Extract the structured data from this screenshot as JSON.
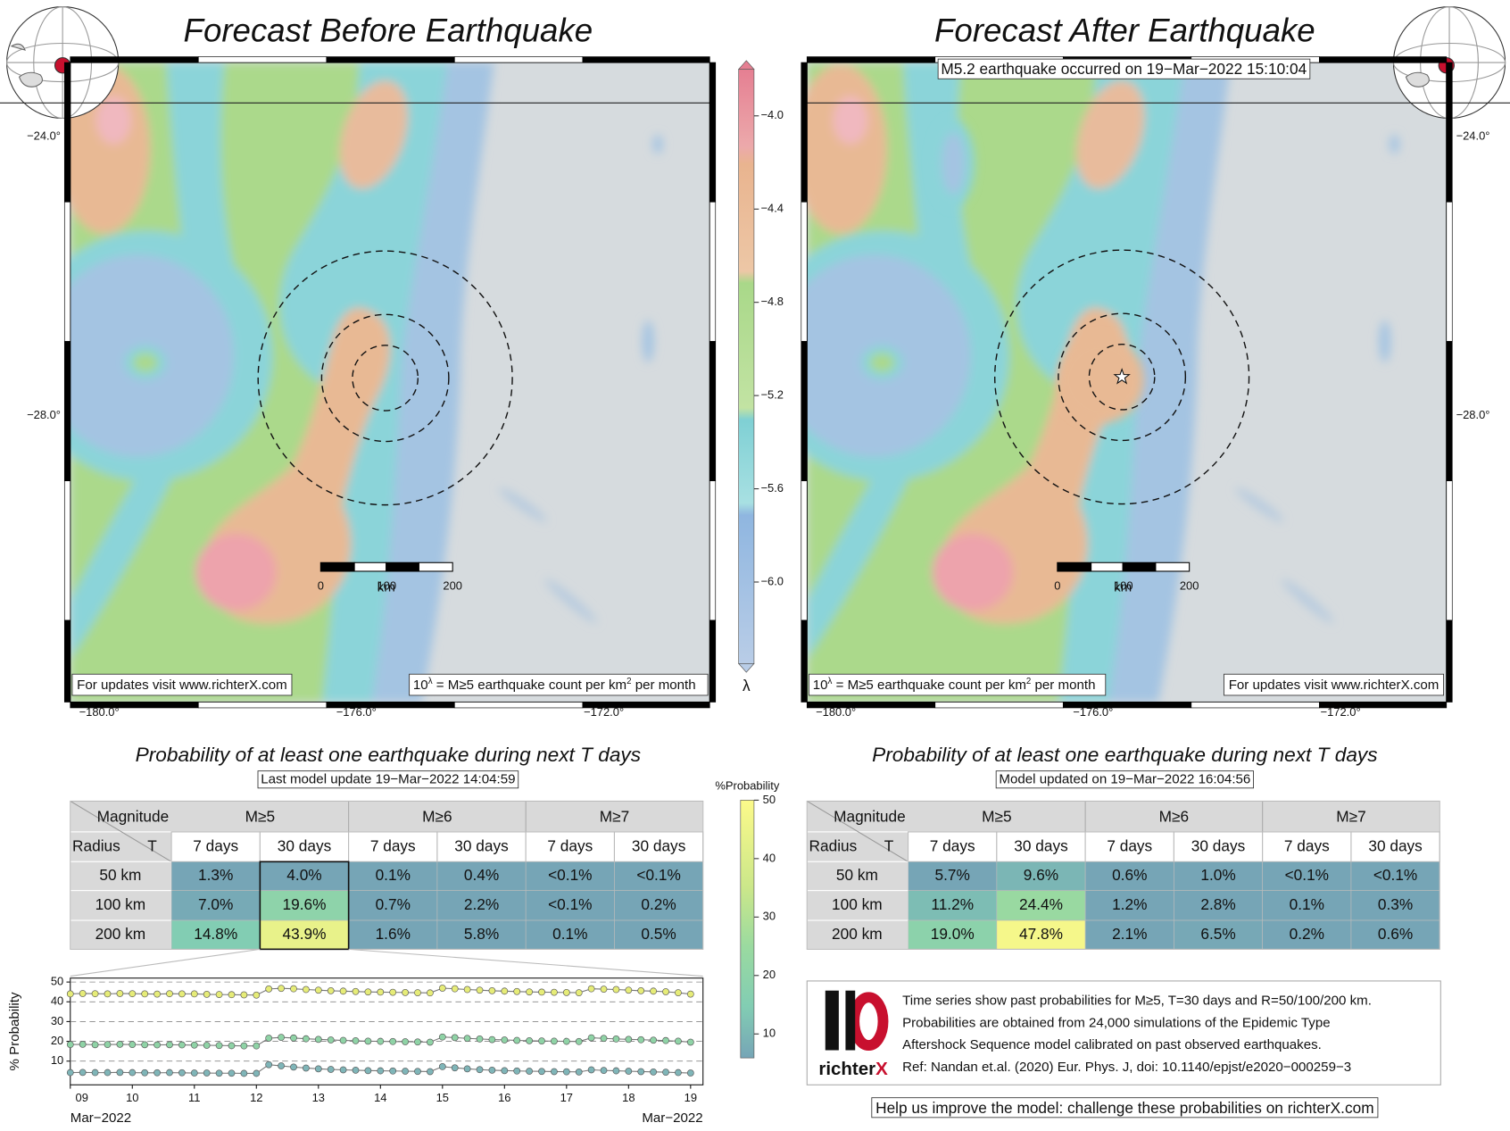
{
  "left_map": {
    "title": "Forecast Before Earthquake",
    "lat_labels": [
      "−24.0°",
      "−28.0°"
    ],
    "lon_labels": [
      "−180.0°",
      "−176.0°",
      "−172.0°"
    ],
    "scale_unit": "km",
    "scale_labels": [
      "0",
      "100",
      "200"
    ],
    "credit": "For updates visit www.richterX.com",
    "legend": [
      "10",
      "λ",
      " = M≥5 earthquake count per km",
      "2",
      " per month"
    ]
  },
  "right_map": {
    "title": "Forecast After Earthquake",
    "annotation": "M5.2 earthquake occurred on 19−Mar−2022 15:10:04",
    "lat_labels": [
      "−24.0°",
      "−28.0°"
    ],
    "lon_labels": [
      "−180.0°",
      "−176.0°",
      "−172.0°"
    ],
    "scale_unit": "km",
    "scale_labels": [
      "0",
      "100",
      "200"
    ],
    "credit": "For updates visit www.richterX.com",
    "legend": [
      "10",
      "λ",
      " = M≥5 earthquake count per km",
      "2",
      " per month"
    ]
  },
  "lambda_colorbar": {
    "label": "λ",
    "lim": [
      -6.35,
      -3.8
    ],
    "ticks": [
      {
        "value": -4.0,
        "label": "−4.0"
      },
      {
        "value": -4.4,
        "label": "−4.4"
      },
      {
        "value": -4.8,
        "label": "−4.8"
      },
      {
        "value": -5.2,
        "label": "−5.2"
      },
      {
        "value": -5.6,
        "label": "−5.6"
      },
      {
        "value": -6.0,
        "label": "−6.0"
      }
    ]
  },
  "left_table": {
    "title": "Probability of at least one earthquake during next T days",
    "subtitle": "Last model update 19−Mar−2022 14:04:59",
    "corner": [
      "Magnitude",
      "Radius",
      "T"
    ],
    "magnitudes": [
      "M≥5",
      "M≥6",
      "M≥7"
    ],
    "durations": [
      "7 days",
      "30 days",
      "7 days",
      "30 days",
      "7 days",
      "30 days"
    ],
    "rows": [
      {
        "radius": "50 km",
        "cells": [
          "1.3%",
          "4.0%",
          "0.1%",
          "0.4%",
          "<0.1%",
          "<0.1%"
        ]
      },
      {
        "radius": "100 km",
        "cells": [
          "7.0%",
          "19.6%",
          "0.7%",
          "2.2%",
          "<0.1%",
          "0.2%"
        ]
      },
      {
        "radius": "200 km",
        "cells": [
          "14.8%",
          "43.9%",
          "1.6%",
          "5.8%",
          "0.1%",
          "0.5%"
        ]
      }
    ]
  },
  "right_table": {
    "title": "Probability of at least one earthquake during next T days",
    "subtitle": "Model updated on 19−Mar−2022 16:04:56",
    "corner": [
      "Magnitude",
      "Radius",
      "T"
    ],
    "magnitudes": [
      "M≥5",
      "M≥6",
      "M≥7"
    ],
    "durations": [
      "7 days",
      "30 days",
      "7 days",
      "30 days",
      "7 days",
      "30 days"
    ],
    "rows": [
      {
        "radius": "50 km",
        "cells": [
          "5.7%",
          "9.6%",
          "0.6%",
          "1.0%",
          "<0.1%",
          "<0.1%"
        ]
      },
      {
        "radius": "100 km",
        "cells": [
          "11.2%",
          "24.4%",
          "1.2%",
          "2.8%",
          "0.1%",
          "0.3%"
        ]
      },
      {
        "radius": "200 km",
        "cells": [
          "19.0%",
          "47.8%",
          "2.1%",
          "6.5%",
          "0.2%",
          "0.6%"
        ]
      }
    ]
  },
  "probability_colorbar": {
    "label": "%Probability",
    "lim": [
      5.9,
      50
    ],
    "ticks": [
      10,
      20,
      30,
      40,
      50
    ]
  },
  "chart_data": {
    "type": "line",
    "y_label": "% Probability",
    "x_edge_labels": [
      "Mar−2022",
      "Mar−2022"
    ],
    "xlim": [
      9.0,
      19.2
    ],
    "ylim": [
      -2,
      52
    ],
    "xticks": [
      {
        "value": 9,
        "label": "09"
      },
      10,
      11,
      12,
      13,
      14,
      15,
      16,
      17,
      18,
      19
    ],
    "yticks": [
      10,
      20,
      30,
      40,
      50
    ],
    "grid": true,
    "x": [
      9.0,
      9.2,
      9.4,
      9.6,
      9.8,
      10.0,
      10.2,
      10.4,
      10.6,
      10.8,
      11.0,
      11.2,
      11.4,
      11.6,
      11.8,
      12.0,
      12.2,
      12.4,
      12.6,
      12.8,
      13.0,
      13.2,
      13.4,
      13.6,
      13.8,
      14.0,
      14.2,
      14.4,
      14.6,
      14.8,
      15.0,
      15.2,
      15.4,
      15.6,
      15.8,
      16.0,
      16.2,
      16.4,
      16.6,
      16.8,
      17.0,
      17.2,
      17.4,
      17.6,
      17.8,
      18.0,
      18.2,
      18.4,
      18.6,
      18.8,
      19.0
    ],
    "series": [
      {
        "color": "#e6ec78",
        "values": [
          44,
          44.2,
          44.1,
          44,
          44.2,
          44.1,
          44,
          43.9,
          44.1,
          44,
          44,
          43.8,
          43.7,
          43.6,
          43.5,
          43.4,
          46.5,
          46.8,
          46.6,
          46.2,
          45.9,
          45.6,
          45.4,
          45.2,
          45,
          44.9,
          44.8,
          44.7,
          44.6,
          44.5,
          46.9,
          46.6,
          46.2,
          45.9,
          45.6,
          45.4,
          45.2,
          45,
          44.9,
          44.8,
          44.7,
          44.6,
          46.6,
          46.4,
          46.2,
          45.9,
          45.6,
          45.4,
          45.1,
          44.6,
          43.9
        ]
      },
      {
        "color": "#8fd3a6",
        "values": [
          18.4,
          18.5,
          18.3,
          18.4,
          18.5,
          18.4,
          18.3,
          18.2,
          18.3,
          18.2,
          18.1,
          18,
          17.9,
          17.8,
          17.7,
          17.7,
          21.6,
          22,
          21.7,
          21.3,
          21,
          20.7,
          20.5,
          20.3,
          20.1,
          20,
          19.9,
          19.8,
          19.7,
          19.6,
          22.2,
          21.9,
          21.5,
          21.2,
          20.9,
          20.7,
          20.5,
          20.3,
          20.2,
          20.1,
          20,
          19.9,
          21.8,
          21.5,
          21.2,
          21,
          20.8,
          20.6,
          20.4,
          20.1,
          19.6
        ]
      },
      {
        "color": "#7fb5b8",
        "values": [
          4.2,
          4.3,
          4.2,
          4.2,
          4.3,
          4.2,
          4.1,
          4.1,
          4.2,
          4.1,
          4,
          4,
          3.9,
          3.9,
          3.8,
          3.8,
          8.2,
          7.6,
          7,
          6.5,
          6.1,
          5.8,
          5.6,
          5.4,
          5.2,
          5.1,
          5,
          4.9,
          4.8,
          4.7,
          7.2,
          6.6,
          6.1,
          5.7,
          5.4,
          5.2,
          5,
          4.9,
          4.8,
          4.7,
          4.6,
          4.5,
          5.6,
          5.3,
          5.1,
          4.9,
          4.7,
          4.5,
          4.4,
          4.2,
          4.0
        ]
      }
    ]
  },
  "info": {
    "logo": [
      "richter",
      "X"
    ],
    "lines": [
      "Time series show past probabilities for M≥5, T=30 days and R=50/100/200 km.",
      "Probabilities are obtained from 24,000 simulations of the Epidemic Type",
      "Aftershock Sequence model calibrated on past observed earthquakes.",
      "Ref: Nandan et.al. (2020) Eur. Phys. J, doi: 10.1140/epjst/e2020−000259−3"
    ]
  },
  "footer": "Help us improve the model: challenge these probabilities on richterX.com"
}
